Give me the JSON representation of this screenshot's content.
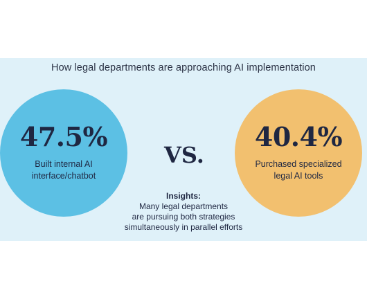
{
  "title": "How legal departments are approaching AI implementation",
  "comparison_word": "VS.",
  "insights": {
    "heading": "Insights:",
    "lines": [
      "Many legal departments",
      "are pursuing both strategies",
      "simultaneously in parallel efforts"
    ]
  },
  "colors": {
    "panel_bg": "#dff1f9",
    "left_circle": "#5cc0e4",
    "right_circle": "#f2c06f",
    "text_dark": "#1f2742"
  },
  "chart_data": {
    "type": "table",
    "title": "How legal departments are approaching AI implementation",
    "items": [
      {
        "value_label": "47.5%",
        "value": 47.5,
        "description_lines": [
          "Built internal AI",
          "interface/chatbot"
        ]
      },
      {
        "value_label": "40.4%",
        "value": 40.4,
        "description_lines": [
          "Purchased specialized",
          "legal AI tools"
        ]
      }
    ]
  }
}
